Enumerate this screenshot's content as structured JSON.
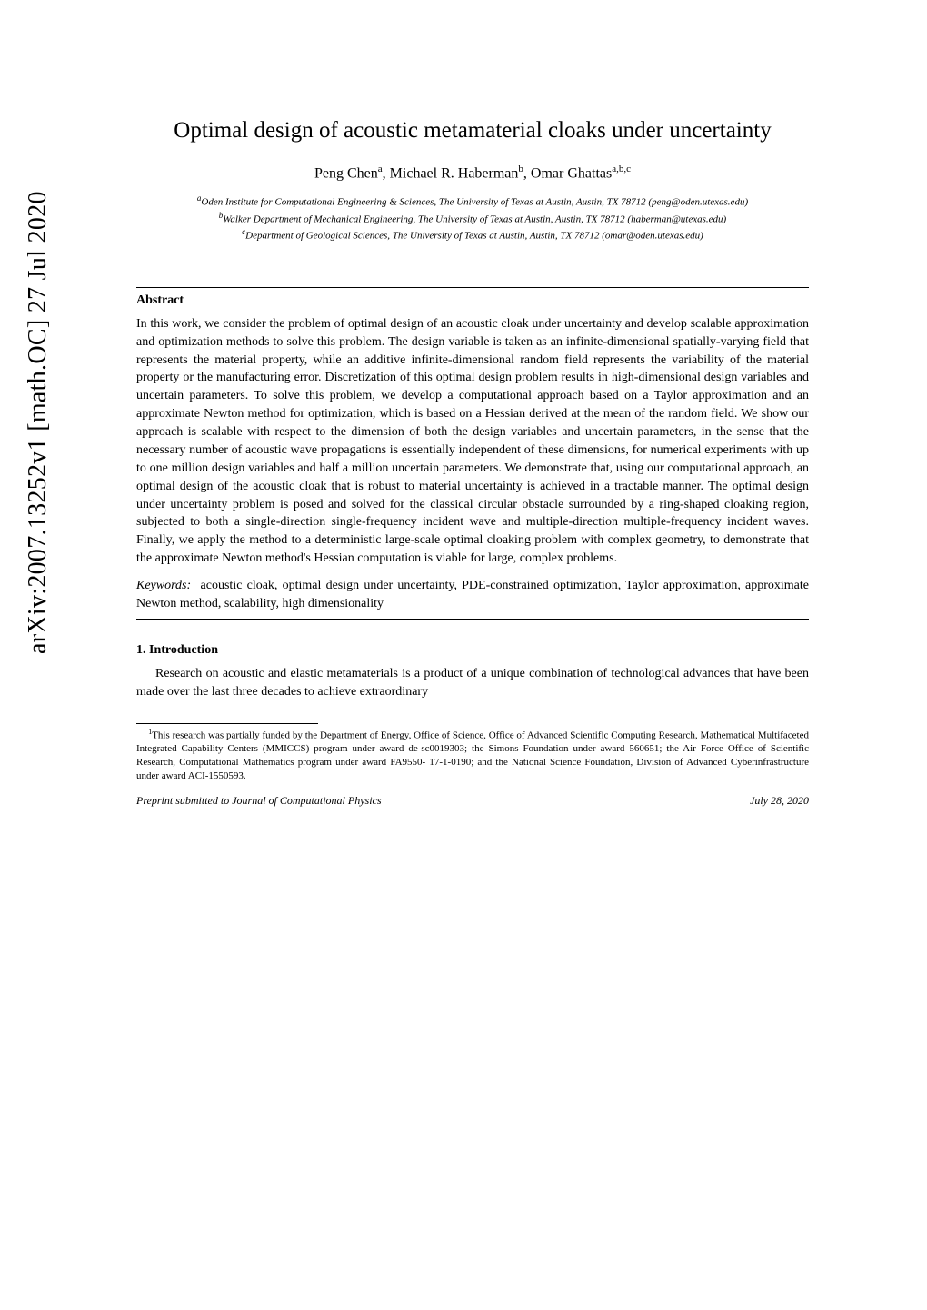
{
  "arxiv_stamp": "arXiv:2007.13252v1  [math.OC]  27 Jul 2020",
  "title": "Optimal design of acoustic metamaterial cloaks under uncertainty",
  "authors_html": "Peng Chen",
  "authors": [
    {
      "name": "Peng Chen",
      "sup": "a"
    },
    {
      "name": "Michael R. Haberman",
      "sup": "b"
    },
    {
      "name": "Omar Ghattas",
      "sup": "a,b,c"
    }
  ],
  "affiliations": [
    {
      "sup": "a",
      "text": "Oden Institute for Computational Engineering & Sciences, The University of Texas at Austin, Austin, TX 78712 (peng@oden.utexas.edu)"
    },
    {
      "sup": "b",
      "text": "Walker Department of Mechanical Engineering, The University of Texas at Austin, Austin, TX 78712 (haberman@utexas.edu)"
    },
    {
      "sup": "c",
      "text": "Department of Geological Sciences, The University of Texas at Austin, Austin, TX 78712 (omar@oden.utexas.edu)"
    }
  ],
  "abstract_heading": "Abstract",
  "abstract_body": "In this work, we consider the problem of optimal design of an acoustic cloak under uncertainty and develop scalable approximation and optimization methods to solve this problem. The design variable is taken as an infinite-dimensional spatially-varying field that represents the material property, while an additive infinite-dimensional random field represents the variability of the material property or the manufacturing error. Discretization of this optimal design problem results in high-dimensional design variables and uncertain parameters. To solve this problem, we develop a computational approach based on a Taylor approximation and an approximate Newton method for optimization, which is based on a Hessian derived at the mean of the random field. We show our approach is scalable with respect to the dimension of both the design variables and uncertain parameters, in the sense that the necessary number of acoustic wave propagations is essentially independent of these dimensions, for numerical experiments with up to one million design variables and half a million uncertain parameters. We demonstrate that, using our computational approach, an optimal design of the acoustic cloak that is robust to material uncertainty is achieved in a tractable manner. The optimal design under uncertainty problem is posed and solved for the classical circular obstacle surrounded by a ring-shaped cloaking region, subjected to both a single-direction single-frequency incident wave and multiple-direction multiple-frequency incident waves. Finally, we apply the method to a deterministic large-scale optimal cloaking problem with complex geometry, to demonstrate that the approximate Newton method's Hessian computation is viable for large, complex problems.",
  "keywords_label": "Keywords:",
  "keywords_text": "acoustic cloak, optimal design under uncertainty, PDE-constrained optimization, Taylor approximation, approximate Newton method, scalability, high dimensionality",
  "section1_heading": "1.  Introduction",
  "intro_text": "Research on acoustic and elastic metamaterials is a product of a unique combination of technological advances that have been made over the last three decades to achieve extraordinary",
  "footnote_sup": "1",
  "footnote_text": "This research was partially funded by the Department of Energy, Office of Science, Office of Advanced Scientific Computing Research, Mathematical Multifaceted Integrated Capability Centers (MMICCS) program under award de-sc0019303; the Simons Foundation under award 560651; the Air Force Office of Scientific Research, Computational Mathematics program under award FA9550- 17-1-0190; and the National Science Foundation, Division of Advanced Cyberinfrastructure under award ACI-1550593.",
  "preprint_left": "Preprint submitted to Journal of Computational Physics",
  "preprint_right": "July 28, 2020"
}
